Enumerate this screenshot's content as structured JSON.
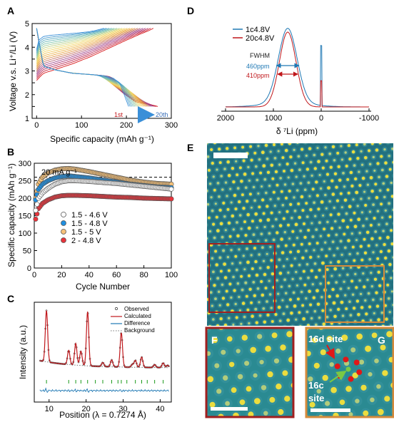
{
  "panels": {
    "A": {
      "label": "A",
      "ylabel": "Voltage v.s. Li⁺/Li (V)",
      "xlabel": "Specific capacity (mAh g⁻¹)",
      "xticks": [
        "0",
        "100",
        "200",
        "300"
      ],
      "yticks": [
        "1",
        "1.5",
        "2",
        "2.5",
        "3",
        "3.5",
        "4",
        "4.5",
        "5"
      ],
      "cycle_start": "1st",
      "cycle_end": "20th"
    },
    "B": {
      "label": "B",
      "ylabel": "Specific capacity (mAh g⁻¹)",
      "xlabel": "Cycle Number",
      "xticks": [
        "0",
        "20",
        "40",
        "60",
        "80",
        "100"
      ],
      "yticks": [
        "0",
        "50",
        "100",
        "150",
        "200",
        "250",
        "300"
      ],
      "rate": "20 mA g⁻¹"
    },
    "C": {
      "label": "C",
      "ylabel": "Intensity (a.u.)",
      "xlabel": "Position (λ = 0.7274 Å)",
      "xticks": [
        "10",
        "20",
        "30",
        "40"
      ],
      "legend": [
        "Observed",
        "Calculated",
        "Difference",
        "Background"
      ]
    },
    "D": {
      "label": "D",
      "xlabel": "δ ⁷Li (ppm)",
      "xticks": [
        "2000",
        "1000",
        "0",
        "-1000"
      ],
      "legend": [
        "1c4.8V",
        "20c4.8V"
      ],
      "fwhm_title": "FWHM",
      "fwhm_1": "460ppm",
      "fwhm_2": "410ppm"
    },
    "E": {
      "label": "E"
    },
    "F": {
      "label": "F"
    },
    "G": {
      "label": "G",
      "site_16d": "16d site",
      "site_16c_1": "16c",
      "site_16c_2": "site"
    }
  },
  "colors": {
    "blue": "#1f78b4",
    "red": "#c0171b",
    "orange_box": "#d58a3a",
    "darkred_box": "#a11f1f",
    "image_bg": "#1f6f80",
    "atom": "#f5e23a",
    "green_arrow": "#7ac943"
  },
  "chart_data": [
    {
      "panel": "A",
      "type": "line",
      "xlabel": "Specific capacity (mAh g⁻¹)",
      "ylabel": "Voltage v.s. Li⁺/Li (V)",
      "xlim": [
        -10,
        300
      ],
      "ylim": [
        1,
        5
      ],
      "cycles": 20,
      "charge_first": {
        "x": [
          0,
          15,
          40,
          80,
          120,
          160,
          200,
          230,
          250,
          260
        ],
        "y": [
          2.6,
          2.9,
          3.05,
          3.3,
          3.6,
          3.95,
          4.3,
          4.55,
          4.7,
          4.8
        ]
      },
      "charge_last": {
        "x": [
          0,
          5,
          15,
          30,
          60,
          90,
          115,
          130,
          140,
          150
        ],
        "y": [
          3.9,
          4.3,
          4.45,
          4.5,
          4.55,
          4.6,
          4.65,
          4.7,
          4.75,
          4.8
        ]
      },
      "discharge_first": {
        "x": [
          0,
          5,
          15,
          40,
          80,
          120,
          150,
          165,
          175,
          190,
          220,
          260,
          270
        ],
        "y": [
          4.8,
          4.2,
          3.2,
          3.05,
          2.9,
          2.85,
          2.8,
          2.75,
          2.6,
          2.1,
          1.7,
          1.55,
          1.5
        ]
      },
      "discharge_last": {
        "x": [
          0,
          5,
          15,
          40,
          80,
          120,
          150,
          170,
          185,
          195,
          205
        ],
        "y": [
          4.8,
          4.3,
          3.2,
          3.05,
          2.9,
          2.85,
          2.8,
          2.7,
          2.5,
          2.0,
          1.5
        ]
      }
    },
    {
      "panel": "B",
      "type": "scatter",
      "xlabel": "Cycle Number",
      "ylabel": "Specific capacity (mAh g⁻¹)",
      "xlim": [
        0,
        100
      ],
      "ylim": [
        0,
        300
      ],
      "dashed_level": 260,
      "series": [
        {
          "name": "1.5 - 4.6 V",
          "color": "#ffffff",
          "x": [
            1,
            3,
            6,
            10,
            15,
            20,
            25,
            30,
            40,
            50,
            60,
            70,
            80,
            90,
            100
          ],
          "y": [
            165,
            200,
            215,
            228,
            240,
            247,
            250,
            250,
            248,
            245,
            242,
            238,
            234,
            230,
            226
          ]
        },
        {
          "name": "1.5 - 4.8 V",
          "color": "#1f8fe0",
          "x": [
            1,
            3,
            6,
            10,
            15,
            20,
            25,
            30,
            40,
            50,
            60,
            70,
            80,
            90,
            100
          ],
          "y": [
            195,
            225,
            240,
            250,
            258,
            262,
            264,
            262,
            258,
            252,
            246,
            240,
            236,
            232,
            230
          ]
        },
        {
          "name": "1.5 - 5 V",
          "color": "#f6c27a",
          "x": [
            1,
            3,
            6,
            10,
            15,
            20,
            25,
            30,
            40,
            50,
            60,
            70,
            80,
            90,
            100
          ],
          "y": [
            200,
            240,
            260,
            272,
            280,
            284,
            285,
            283,
            276,
            268,
            260,
            252,
            246,
            242,
            240
          ]
        },
        {
          "name": "2 - 4.8 V",
          "color": "#e8333a",
          "x": [
            1,
            3,
            6,
            10,
            15,
            20,
            25,
            30,
            40,
            50,
            60,
            70,
            80,
            90,
            100
          ],
          "y": [
            140,
            170,
            185,
            195,
            203,
            207,
            208,
            208,
            207,
            205,
            203,
            202,
            200,
            199,
            198
          ]
        }
      ]
    },
    {
      "panel": "C",
      "type": "line",
      "xlabel": "Position (λ = 0.7274 Å)",
      "ylabel": "Intensity (a.u.)",
      "xlim": [
        6,
        43
      ],
      "peaks": [
        [
          9.3,
          0.9
        ],
        [
          15.3,
          0.25
        ],
        [
          17.2,
          0.38
        ],
        [
          18.6,
          0.25
        ],
        [
          20.4,
          0.95
        ],
        [
          24.5,
          0.07
        ],
        [
          26.9,
          0.12
        ],
        [
          29.5,
          0.6
        ],
        [
          32.5,
          0.05
        ],
        [
          33.3,
          0.12
        ],
        [
          35.0,
          0.18
        ],
        [
          38.5,
          0.05
        ],
        [
          40.8,
          0.08
        ],
        [
          42.0,
          0.04
        ]
      ],
      "reflection_ticks": [
        9.3,
        15.3,
        17.2,
        18.6,
        20.4,
        22.5,
        24.5,
        26.9,
        28.6,
        29.5,
        31.0,
        33.3,
        35.0,
        36.5,
        38.5,
        40.8
      ]
    },
    {
      "panel": "D",
      "type": "line",
      "xlabel": "δ ⁷Li (ppm)",
      "xlim": [
        2000,
        -1000
      ],
      "series": [
        {
          "name": "1c4.8V",
          "color": "#1f78b4",
          "center": 700,
          "fwhm": 460
        },
        {
          "name": "20c4.8V",
          "color": "#c0171b",
          "center": 700,
          "fwhm": 410
        }
      ]
    }
  ]
}
